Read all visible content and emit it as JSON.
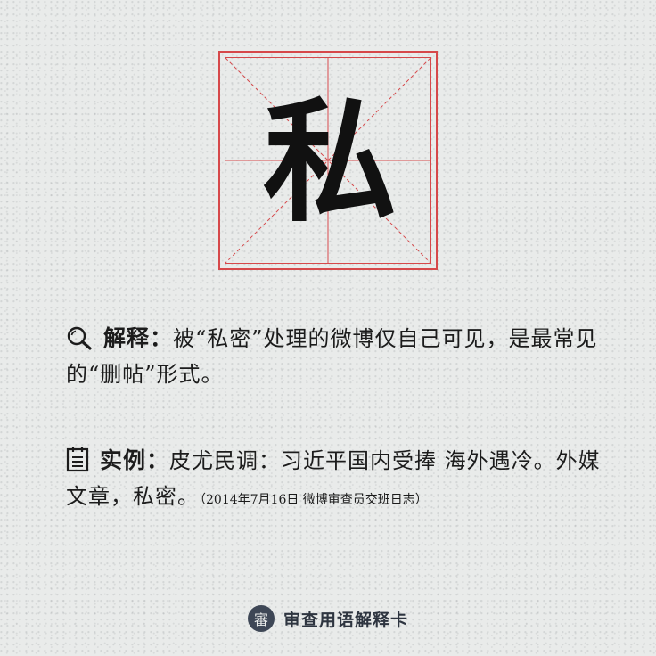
{
  "character": "私",
  "explanation": {
    "label": "解释：",
    "text": "被“私密”处理的微博仅自己可见，是最常见的“删帖”形式。"
  },
  "example": {
    "label": "实例：",
    "text": "皮尤民调：习近平国内受捧 海外遇冷。外媒文章，私密。",
    "note": "（2014年7月16日 微博审查员交班日志）"
  },
  "footer": {
    "logo_char": "審",
    "title": "审查用语解释卡"
  },
  "icons": {
    "explain": "magnifier-icon",
    "example": "notepad-icon"
  },
  "colors": {
    "grid_red": "#d6484a",
    "background": "#e9ebea",
    "logo_bg": "#3e4756"
  }
}
